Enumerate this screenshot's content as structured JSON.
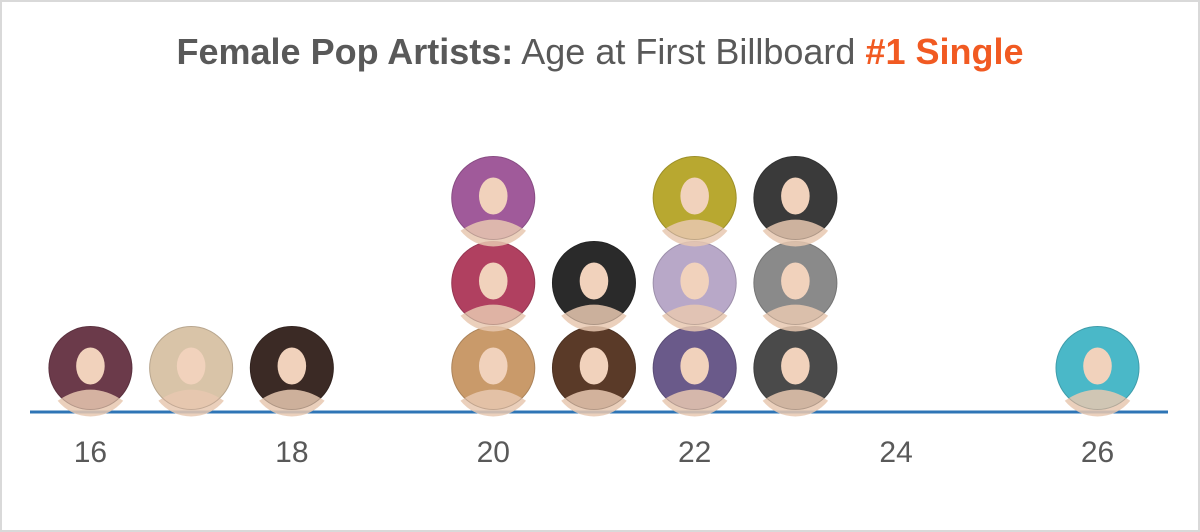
{
  "title": {
    "part1": "Female Pop Artists:",
    "part2": " Age at First Billboard ",
    "part3": "#1 Single"
  },
  "colors": {
    "title_gray": "#595959",
    "accent": "#f15a22",
    "axis_line": "#2e75b6",
    "tick_label": "#595959"
  },
  "chart_data": {
    "type": "scatter",
    "xlim": [
      15.4,
      26.7
    ],
    "ticks": [
      16,
      18,
      20,
      22,
      24,
      26
    ],
    "xlabel": "",
    "ylabel": "",
    "points": [
      {
        "x": 16,
        "y": 1,
        "icon": "artist-portrait",
        "color": "#6b3a4a"
      },
      {
        "x": 17,
        "y": 1,
        "icon": "artist-portrait",
        "color": "#d9c4a8"
      },
      {
        "x": 18,
        "y": 1,
        "icon": "artist-portrait",
        "color": "#3b2a25"
      },
      {
        "x": 20,
        "y": 1,
        "icon": "artist-portrait",
        "color": "#c99a6a"
      },
      {
        "x": 20,
        "y": 2,
        "icon": "artist-portrait",
        "color": "#b04060"
      },
      {
        "x": 20,
        "y": 3,
        "icon": "artist-portrait",
        "color": "#a05a9a"
      },
      {
        "x": 21,
        "y": 1,
        "icon": "artist-portrait",
        "color": "#5a3a28"
      },
      {
        "x": 21,
        "y": 2,
        "icon": "artist-portrait",
        "color": "#2a2a2a"
      },
      {
        "x": 22,
        "y": 1,
        "icon": "artist-portrait",
        "color": "#6a5a8a"
      },
      {
        "x": 22,
        "y": 2,
        "icon": "artist-portrait",
        "color": "#b8a8c8"
      },
      {
        "x": 22,
        "y": 3,
        "icon": "artist-portrait",
        "color": "#b8a830"
      },
      {
        "x": 23,
        "y": 1,
        "icon": "artist-portrait",
        "color": "#4a4a4a"
      },
      {
        "x": 23,
        "y": 2,
        "icon": "artist-portrait",
        "color": "#8a8a8a"
      },
      {
        "x": 23,
        "y": 3,
        "icon": "artist-portrait",
        "color": "#3a3a3a"
      },
      {
        "x": 26,
        "y": 1,
        "icon": "artist-portrait",
        "color": "#4ab8c8"
      }
    ]
  }
}
